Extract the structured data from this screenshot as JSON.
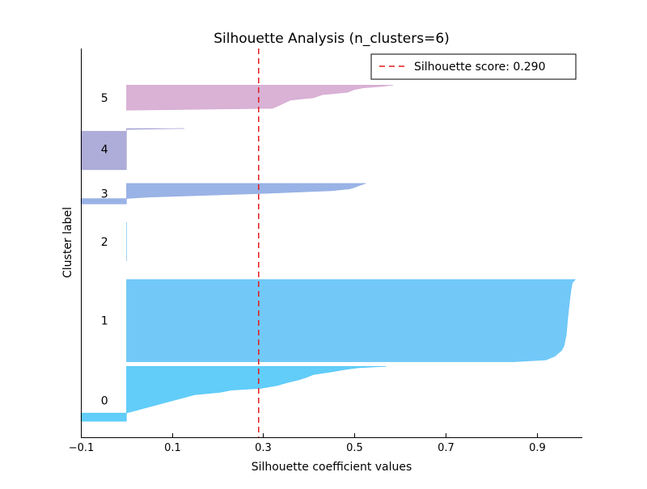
{
  "chart_data": {
    "type": "area",
    "title": "Silhouette Analysis (n_clusters=6)",
    "xlabel": "Silhouette coefficient values",
    "ylabel": "Cluster label",
    "xlim": [
      -0.1,
      1.0
    ],
    "xticks": [
      -0.1,
      0.1,
      0.3,
      0.5,
      0.7,
      0.9
    ],
    "xtick_labels": [
      "−0.1",
      "0.1",
      "0.3",
      "0.5",
      "0.7",
      "0.9"
    ],
    "ylim": [
      0,
      85
    ],
    "grid": false,
    "legend_position": "top-right",
    "average_silhouette": {
      "value": 0.29,
      "label": "Silhouette score: 0.290",
      "color": "#e41a1c",
      "style": "dashed"
    },
    "clusters": [
      {
        "label": "0",
        "color": "#1fb8f7",
        "y_lower": 3.5,
        "y_upper": 12.5,
        "profile": [
          [
            0.0,
            -0.1
          ],
          [
            1.8,
            -0.1
          ],
          [
            1.8,
            0.0
          ],
          [
            5.8,
            0.15
          ],
          [
            6.3,
            0.205
          ],
          [
            6.8,
            0.23
          ],
          [
            7.2,
            0.295
          ],
          [
            7.8,
            0.33
          ],
          [
            8.5,
            0.355
          ],
          [
            9.1,
            0.38
          ],
          [
            9.6,
            0.395
          ],
          [
            10.2,
            0.41
          ],
          [
            10.8,
            0.45
          ],
          [
            11.3,
            0.48
          ],
          [
            11.7,
            0.51
          ],
          [
            12.0,
            0.57
          ]
        ]
      },
      {
        "label": "1",
        "color": "#36b2f5",
        "y_lower": 16.5,
        "y_upper": 34.5,
        "profile": [
          [
            0.0,
            0.85
          ],
          [
            0.4,
            0.92
          ],
          [
            1.2,
            0.94
          ],
          [
            2.5,
            0.955
          ],
          [
            3.5,
            0.96
          ],
          [
            6.0,
            0.965
          ],
          [
            9.5,
            0.968
          ],
          [
            13.0,
            0.972
          ],
          [
            15.5,
            0.975
          ],
          [
            17.2,
            0.978
          ],
          [
            18.0,
            0.985
          ]
        ]
      },
      {
        "label": "2",
        "color": "#55acee",
        "y_lower": 38.5,
        "y_upper": 47.0,
        "profile": [
          [
            0.0,
            0.0
          ],
          [
            8.5,
            0.0
          ]
        ]
      },
      {
        "label": "3",
        "color": "#6f93dc",
        "y_lower": 51.0,
        "y_upper": 55.5,
        "profile": [
          [
            0.0,
            -0.1
          ],
          [
            1.2,
            -0.1
          ],
          [
            1.2,
            0.0
          ],
          [
            1.5,
            0.05
          ],
          [
            2.3,
            0.3
          ],
          [
            2.9,
            0.45
          ],
          [
            3.3,
            0.49
          ],
          [
            3.6,
            0.5
          ],
          [
            4.0,
            0.51
          ],
          [
            4.5,
            0.525
          ]
        ]
      },
      {
        "label": "4",
        "color": "#8c89c8",
        "y_lower": 58.5,
        "y_upper": 67.5,
        "profile": [
          [
            0.0,
            -0.1
          ],
          [
            8.4,
            -0.1
          ],
          [
            8.4,
            0.0
          ],
          [
            8.8,
            0.0
          ],
          [
            9.0,
            0.127
          ]
        ]
      },
      {
        "label": "5",
        "color": "#c992c4",
        "y_lower": 71.5,
        "y_upper": 77.0,
        "profile": [
          [
            0.0,
            0.0
          ],
          [
            0.4,
            0.32
          ],
          [
            0.8,
            0.33
          ],
          [
            1.5,
            0.345
          ],
          [
            2.2,
            0.36
          ],
          [
            2.7,
            0.41
          ],
          [
            3.4,
            0.43
          ],
          [
            3.9,
            0.485
          ],
          [
            4.5,
            0.5
          ],
          [
            4.9,
            0.52
          ],
          [
            5.2,
            0.56
          ],
          [
            5.5,
            0.585
          ]
        ]
      }
    ]
  }
}
